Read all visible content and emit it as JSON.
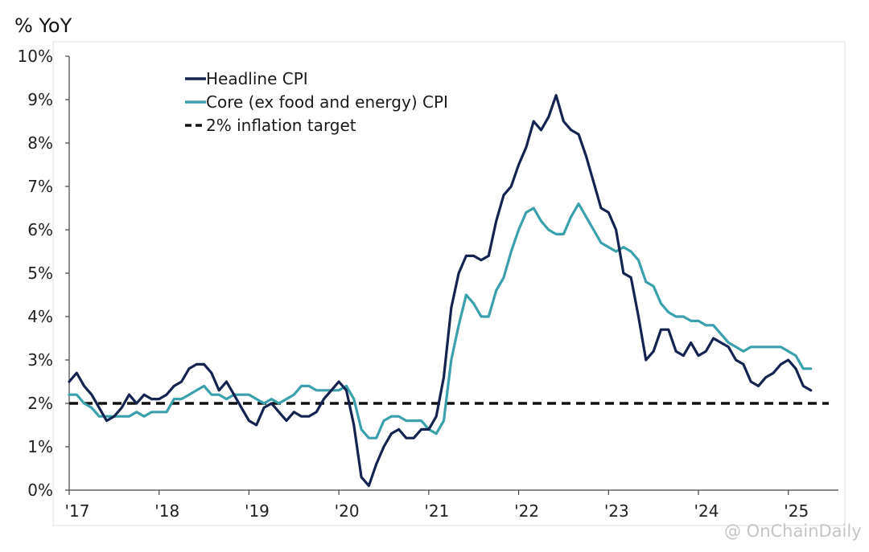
{
  "chart_data": {
    "type": "line",
    "title": "% YoY",
    "ylim": [
      0,
      10
    ],
    "xlim": [
      2017.0,
      2025.45
    ],
    "y_ticks": [
      0,
      1,
      2,
      3,
      4,
      5,
      6,
      7,
      8,
      9,
      10
    ],
    "y_tick_labels": [
      "0%",
      "1%",
      "2%",
      "3%",
      "4%",
      "5%",
      "6%",
      "7%",
      "8%",
      "9%",
      "10%"
    ],
    "x_ticks": [
      2017,
      2018,
      2019,
      2020,
      2021,
      2022,
      2023,
      2024,
      2025
    ],
    "x_tick_labels": [
      "'17",
      "'18",
      "'19",
      "'20",
      "'21",
      "'22",
      "'23",
      "'24",
      "'25"
    ],
    "grid": false,
    "legend_position": "top-left",
    "watermark": "@ OnChainDaily",
    "colors": {
      "headline": "#14234f",
      "core": "#3aa0ac",
      "target": "#111111"
    },
    "series": [
      {
        "name": "Headline CPI",
        "color": "#14234f",
        "start": "2017-01",
        "frequency": "monthly",
        "values": [
          2.5,
          2.7,
          2.4,
          2.2,
          1.9,
          1.6,
          1.7,
          1.9,
          2.2,
          2.0,
          2.2,
          2.1,
          2.1,
          2.2,
          2.4,
          2.5,
          2.8,
          2.9,
          2.9,
          2.7,
          2.3,
          2.5,
          2.2,
          1.9,
          1.6,
          1.5,
          1.9,
          2.0,
          1.8,
          1.6,
          1.8,
          1.7,
          1.7,
          1.8,
          2.1,
          2.3,
          2.5,
          2.3,
          1.5,
          0.3,
          0.1,
          0.6,
          1.0,
          1.3,
          1.4,
          1.2,
          1.2,
          1.4,
          1.4,
          1.7,
          2.6,
          4.2,
          5.0,
          5.4,
          5.4,
          5.3,
          5.4,
          6.2,
          6.8,
          7.0,
          7.5,
          7.9,
          8.5,
          8.3,
          8.6,
          9.1,
          8.5,
          8.3,
          8.2,
          7.7,
          7.1,
          6.5,
          6.4,
          6.0,
          5.0,
          4.9,
          4.0,
          3.0,
          3.2,
          3.7,
          3.7,
          3.2,
          3.1,
          3.4,
          3.1,
          3.2,
          3.5,
          3.4,
          3.3,
          3.0,
          2.9,
          2.5,
          2.4,
          2.6,
          2.7,
          2.9,
          3.0,
          2.8,
          2.4,
          2.3
        ]
      },
      {
        "name": "Core (ex food and energy) CPI",
        "color": "#3aa0ac",
        "start": "2017-01",
        "frequency": "monthly",
        "values": [
          2.2,
          2.2,
          2.0,
          1.9,
          1.7,
          1.7,
          1.7,
          1.7,
          1.7,
          1.8,
          1.7,
          1.8,
          1.8,
          1.8,
          2.1,
          2.1,
          2.2,
          2.3,
          2.4,
          2.2,
          2.2,
          2.1,
          2.2,
          2.2,
          2.2,
          2.1,
          2.0,
          2.1,
          2.0,
          2.1,
          2.2,
          2.4,
          2.4,
          2.3,
          2.3,
          2.3,
          2.3,
          2.4,
          2.1,
          1.4,
          1.2,
          1.2,
          1.6,
          1.7,
          1.7,
          1.6,
          1.6,
          1.6,
          1.4,
          1.3,
          1.6,
          3.0,
          3.8,
          4.5,
          4.3,
          4.0,
          4.0,
          4.6,
          4.9,
          5.5,
          6.0,
          6.4,
          6.5,
          6.2,
          6.0,
          5.9,
          5.9,
          6.3,
          6.6,
          6.3,
          6.0,
          5.7,
          5.6,
          5.5,
          5.6,
          5.5,
          5.3,
          4.8,
          4.7,
          4.3,
          4.1,
          4.0,
          4.0,
          3.9,
          3.9,
          3.8,
          3.8,
          3.6,
          3.4,
          3.3,
          3.2,
          3.3,
          3.3,
          3.3,
          3.3,
          3.3,
          3.2,
          3.1,
          2.8,
          2.8
        ]
      },
      {
        "name": "2% inflation target",
        "color": "#111111",
        "dash": true,
        "value": 2
      }
    ]
  }
}
